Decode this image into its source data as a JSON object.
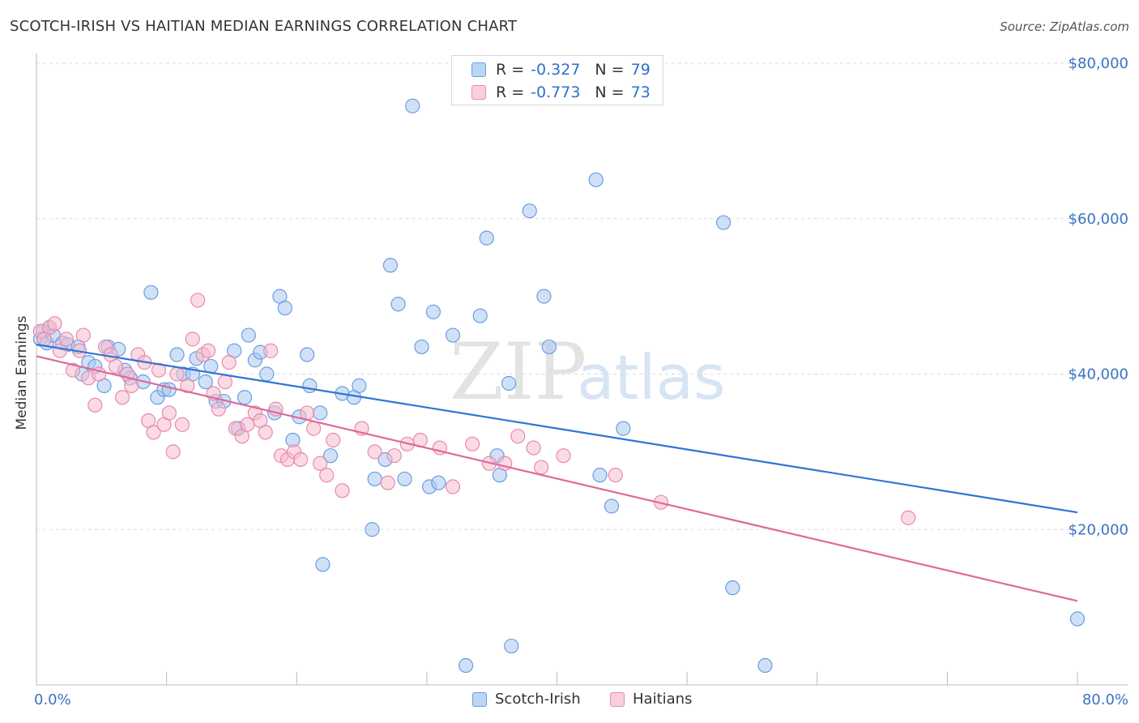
{
  "header": {
    "title": "SCOTCH-IRISH VS HAITIAN MEDIAN EARNINGS CORRELATION CHART",
    "source": "Source: ZipAtlas.com"
  },
  "watermark": {
    "zip": "ZIP",
    "atlas": "atlas"
  },
  "legend": {
    "rows": [
      {
        "r_label": "R =",
        "r_value": "-0.327",
        "n_label": "N =",
        "n_value": "79"
      },
      {
        "r_label": "R =",
        "r_value": "-0.773",
        "n_label": "N =",
        "n_value": "73"
      }
    ]
  },
  "bottom_legend": {
    "items": [
      {
        "label": "Scotch-Irish"
      },
      {
        "label": "Haitians"
      }
    ]
  },
  "colors": {
    "scotch_irish_fill": "#a9c8f0",
    "scotch_irish_stroke": "#6b9de0",
    "scotch_irish_line": "#2f74d6",
    "haitians_fill": "#f6bcd0",
    "haitians_stroke": "#e88aab",
    "haitians_line": "#e0689a",
    "tick_text": "#3b73c4",
    "grid": "#dddddd",
    "axis": "#bbbbbb"
  },
  "chart_data": {
    "type": "scatter",
    "title": "SCOTCH-IRISH VS HAITIAN MEDIAN EARNINGS CORRELATION CHART",
    "xlabel": "",
    "ylabel": "Median Earnings",
    "xlim": [
      0,
      80
    ],
    "ylim": [
      0,
      80000
    ],
    "x_tick_labels": [
      "0.0%",
      "80.0%"
    ],
    "y_ticks": [
      20000,
      40000,
      60000,
      80000
    ],
    "y_tick_labels": [
      "$20,000",
      "$40,000",
      "$60,000",
      "$80,000"
    ],
    "grid": true,
    "legend_position": "top-center",
    "series": [
      {
        "name": "Scotch-Irish",
        "R": -0.327,
        "N": 79,
        "trend": [
          [
            0,
            43800
          ],
          [
            80,
            22200
          ]
        ],
        "points": [
          [
            0.3,
            44500
          ],
          [
            0.5,
            45500
          ],
          [
            0.8,
            44000
          ],
          [
            1.0,
            46000
          ],
          [
            1.3,
            45000
          ],
          [
            2.0,
            44000
          ],
          [
            2.4,
            43800
          ],
          [
            3.2,
            43500
          ],
          [
            3.5,
            40000
          ],
          [
            4.0,
            41500
          ],
          [
            4.5,
            41000
          ],
          [
            5.2,
            38500
          ],
          [
            5.5,
            43500
          ],
          [
            6.3,
            43200
          ],
          [
            6.8,
            40500
          ],
          [
            7.2,
            39500
          ],
          [
            8.2,
            39000
          ],
          [
            8.8,
            50500
          ],
          [
            9.3,
            37000
          ],
          [
            9.8,
            38000
          ],
          [
            10.2,
            38000
          ],
          [
            10.8,
            42500
          ],
          [
            11.3,
            40000
          ],
          [
            12.0,
            40000
          ],
          [
            12.3,
            42000
          ],
          [
            13.0,
            39000
          ],
          [
            13.4,
            41000
          ],
          [
            13.8,
            36500
          ],
          [
            14.4,
            36500
          ],
          [
            15.2,
            43000
          ],
          [
            15.5,
            33000
          ],
          [
            16.0,
            37000
          ],
          [
            16.3,
            45000
          ],
          [
            16.8,
            41800
          ],
          [
            17.2,
            42800
          ],
          [
            17.7,
            40000
          ],
          [
            18.3,
            35000
          ],
          [
            18.7,
            50000
          ],
          [
            19.1,
            48500
          ],
          [
            19.7,
            31500
          ],
          [
            20.2,
            34500
          ],
          [
            20.8,
            42500
          ],
          [
            21.0,
            38500
          ],
          [
            21.8,
            35000
          ],
          [
            22.6,
            29500
          ],
          [
            22.0,
            15500
          ],
          [
            23.5,
            37500
          ],
          [
            24.4,
            37000
          ],
          [
            24.8,
            38500
          ],
          [
            25.8,
            20000
          ],
          [
            26.0,
            26500
          ],
          [
            26.8,
            29000
          ],
          [
            27.2,
            54000
          ],
          [
            27.8,
            49000
          ],
          [
            28.3,
            26500
          ],
          [
            28.9,
            74500
          ],
          [
            29.6,
            43500
          ],
          [
            30.2,
            25500
          ],
          [
            30.5,
            48000
          ],
          [
            30.9,
            26000
          ],
          [
            32.0,
            45000
          ],
          [
            33.0,
            2500
          ],
          [
            34.1,
            47500
          ],
          [
            34.6,
            57500
          ],
          [
            35.4,
            29500
          ],
          [
            35.6,
            27000
          ],
          [
            36.3,
            38800
          ],
          [
            36.5,
            5000
          ],
          [
            37.9,
            61000
          ],
          [
            39.0,
            50000
          ],
          [
            39.4,
            43500
          ],
          [
            43.0,
            65000
          ],
          [
            43.3,
            27000
          ],
          [
            44.2,
            23000
          ],
          [
            45.1,
            33000
          ],
          [
            52.8,
            59500
          ],
          [
            53.5,
            12500
          ],
          [
            56.0,
            2500
          ],
          [
            80.0,
            8500
          ]
        ]
      },
      {
        "name": "Haitians",
        "R": -0.773,
        "N": 73,
        "trend": [
          [
            0,
            42300
          ],
          [
            80,
            10800
          ]
        ],
        "points": [
          [
            0.3,
            45500
          ],
          [
            0.6,
            44500
          ],
          [
            1.0,
            46000
          ],
          [
            1.4,
            46500
          ],
          [
            1.8,
            43000
          ],
          [
            2.3,
            44500
          ],
          [
            2.8,
            40500
          ],
          [
            3.3,
            43000
          ],
          [
            3.6,
            45000
          ],
          [
            4.0,
            39500
          ],
          [
            4.5,
            36000
          ],
          [
            4.8,
            40000
          ],
          [
            5.3,
            43500
          ],
          [
            5.7,
            42500
          ],
          [
            6.1,
            41000
          ],
          [
            6.6,
            37000
          ],
          [
            7.0,
            40000
          ],
          [
            7.3,
            38500
          ],
          [
            7.8,
            42500
          ],
          [
            8.3,
            41500
          ],
          [
            8.6,
            34000
          ],
          [
            9.0,
            32500
          ],
          [
            9.4,
            40500
          ],
          [
            9.8,
            33500
          ],
          [
            10.2,
            35000
          ],
          [
            10.5,
            30000
          ],
          [
            10.8,
            40000
          ],
          [
            11.2,
            33500
          ],
          [
            11.6,
            38500
          ],
          [
            12.0,
            44500
          ],
          [
            12.4,
            49500
          ],
          [
            12.8,
            42500
          ],
          [
            13.2,
            43000
          ],
          [
            13.6,
            37500
          ],
          [
            14.0,
            35500
          ],
          [
            14.5,
            39000
          ],
          [
            14.8,
            41500
          ],
          [
            15.3,
            33000
          ],
          [
            15.8,
            32000
          ],
          [
            16.2,
            33500
          ],
          [
            16.8,
            35000
          ],
          [
            17.2,
            34000
          ],
          [
            17.6,
            32500
          ],
          [
            18.0,
            43000
          ],
          [
            18.4,
            35500
          ],
          [
            18.8,
            29500
          ],
          [
            19.3,
            29000
          ],
          [
            19.8,
            30000
          ],
          [
            20.3,
            29000
          ],
          [
            20.8,
            35000
          ],
          [
            21.3,
            33000
          ],
          [
            21.8,
            28500
          ],
          [
            22.3,
            27000
          ],
          [
            22.8,
            31500
          ],
          [
            23.5,
            25000
          ],
          [
            25.0,
            33000
          ],
          [
            26.0,
            30000
          ],
          [
            27.0,
            26000
          ],
          [
            27.5,
            29500
          ],
          [
            28.5,
            31000
          ],
          [
            29.5,
            31500
          ],
          [
            31.0,
            30500
          ],
          [
            32.0,
            25500
          ],
          [
            33.5,
            31000
          ],
          [
            34.8,
            28500
          ],
          [
            36.0,
            28500
          ],
          [
            37.0,
            32000
          ],
          [
            38.2,
            30500
          ],
          [
            38.8,
            28000
          ],
          [
            40.5,
            29500
          ],
          [
            44.5,
            27000
          ],
          [
            48.0,
            23500
          ],
          [
            67.0,
            21500
          ]
        ]
      }
    ]
  }
}
